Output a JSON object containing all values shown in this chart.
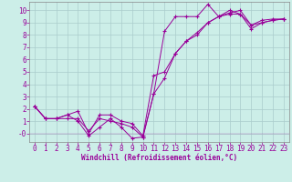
{
  "xlabel": "Windchill (Refroidissement éolien,°C)",
  "background_color": "#cceee8",
  "grid_color": "#aacccc",
  "line_color": "#990099",
  "x_ticks": [
    0,
    1,
    2,
    3,
    4,
    5,
    6,
    7,
    8,
    9,
    10,
    11,
    12,
    13,
    14,
    15,
    16,
    17,
    18,
    19,
    20,
    21,
    22,
    23
  ],
  "y_ticks": [
    0,
    1,
    2,
    3,
    4,
    5,
    6,
    7,
    8,
    9,
    10
  ],
  "y_tick_labels": [
    "-0",
    "1",
    "2",
    "3",
    "4",
    "5",
    "6",
    "7",
    "8",
    "9",
    "10"
  ],
  "xlim": [
    -0.5,
    23.5
  ],
  "ylim": [
    -0.7,
    10.7
  ],
  "series": [
    {
      "x": [
        0,
        1,
        2,
        3,
        4,
        5,
        6,
        7,
        8,
        9,
        10,
        11,
        12,
        13,
        14,
        15,
        16,
        17,
        18,
        19,
        20,
        21,
        22,
        23
      ],
      "y": [
        2.2,
        1.2,
        1.2,
        1.2,
        1.2,
        0.2,
        1.2,
        1.0,
        0.8,
        0.5,
        -0.3,
        3.2,
        8.3,
        9.5,
        9.5,
        9.5,
        10.5,
        9.5,
        10.0,
        9.7,
        8.8,
        9.2,
        9.3,
        9.3
      ]
    },
    {
      "x": [
        0,
        1,
        2,
        3,
        4,
        5,
        6,
        7,
        8,
        9,
        10,
        11,
        12,
        13,
        14,
        15,
        16,
        17,
        18,
        19,
        20,
        21,
        22,
        23
      ],
      "y": [
        2.2,
        1.2,
        1.2,
        1.5,
        1.8,
        0.0,
        1.5,
        1.5,
        1.0,
        0.8,
        -0.2,
        4.7,
        5.0,
        6.5,
        7.5,
        8.2,
        9.0,
        9.5,
        9.8,
        10.0,
        8.8,
        9.0,
        9.2,
        9.3
      ]
    },
    {
      "x": [
        0,
        1,
        2,
        3,
        4,
        5,
        6,
        7,
        8,
        9,
        10,
        11,
        12,
        13,
        14,
        15,
        16,
        17,
        18,
        19,
        20,
        21,
        22,
        23
      ],
      "y": [
        2.2,
        1.2,
        1.2,
        1.5,
        1.0,
        -0.2,
        0.5,
        1.2,
        0.5,
        -0.4,
        -0.3,
        3.2,
        4.5,
        6.5,
        7.5,
        8.0,
        9.0,
        9.5,
        9.7,
        9.7,
        8.5,
        9.0,
        9.2,
        9.3
      ]
    }
  ]
}
